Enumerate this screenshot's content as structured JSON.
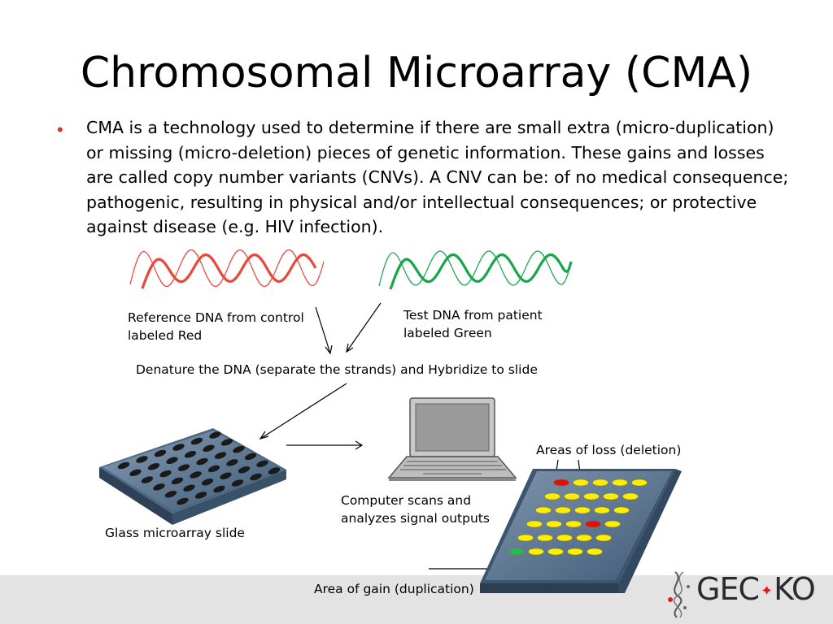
{
  "slide": {
    "title": "Chromosomal Microarray (CMA)",
    "bullet": "CMA is a technology used to determine if there are small extra (micro-duplication) or missing (micro-deletion) pieces of genetic information.  These gains and losses are called copy number variants (CNVs).  A CNV can be: of no medical consequence; pathogenic, resulting in physical and/or intellectual consequences; or protective against disease (e.g. HIV infection)."
  },
  "diagram": {
    "reference_label_1": "Reference DNA from control",
    "reference_label_2": "labeled Red",
    "test_label_1": "Test DNA from patient",
    "test_label_2": "labeled Green",
    "denature_label": "Denature the DNA (separate the strands) and Hybridize to slide",
    "slide_label": "Glass microarray slide",
    "computer_label_1": "Computer scans and",
    "computer_label_2": "analyzes signal outputs",
    "loss_label": "Areas of loss (deletion)",
    "gain_label": "Area of gain (duplication)"
  },
  "logo": {
    "text_left": "GEC",
    "text_right": "KO",
    "leaf_symbol": "maple-leaf"
  },
  "colors": {
    "bullet": "#e0301e",
    "red_dna": "#e8473a",
    "green_dna": "#17a64a",
    "spot_yellow": "#ffee00",
    "spot_red": "#e01010",
    "spot_green": "#22bb55",
    "slide_blue": "#5a7896"
  }
}
